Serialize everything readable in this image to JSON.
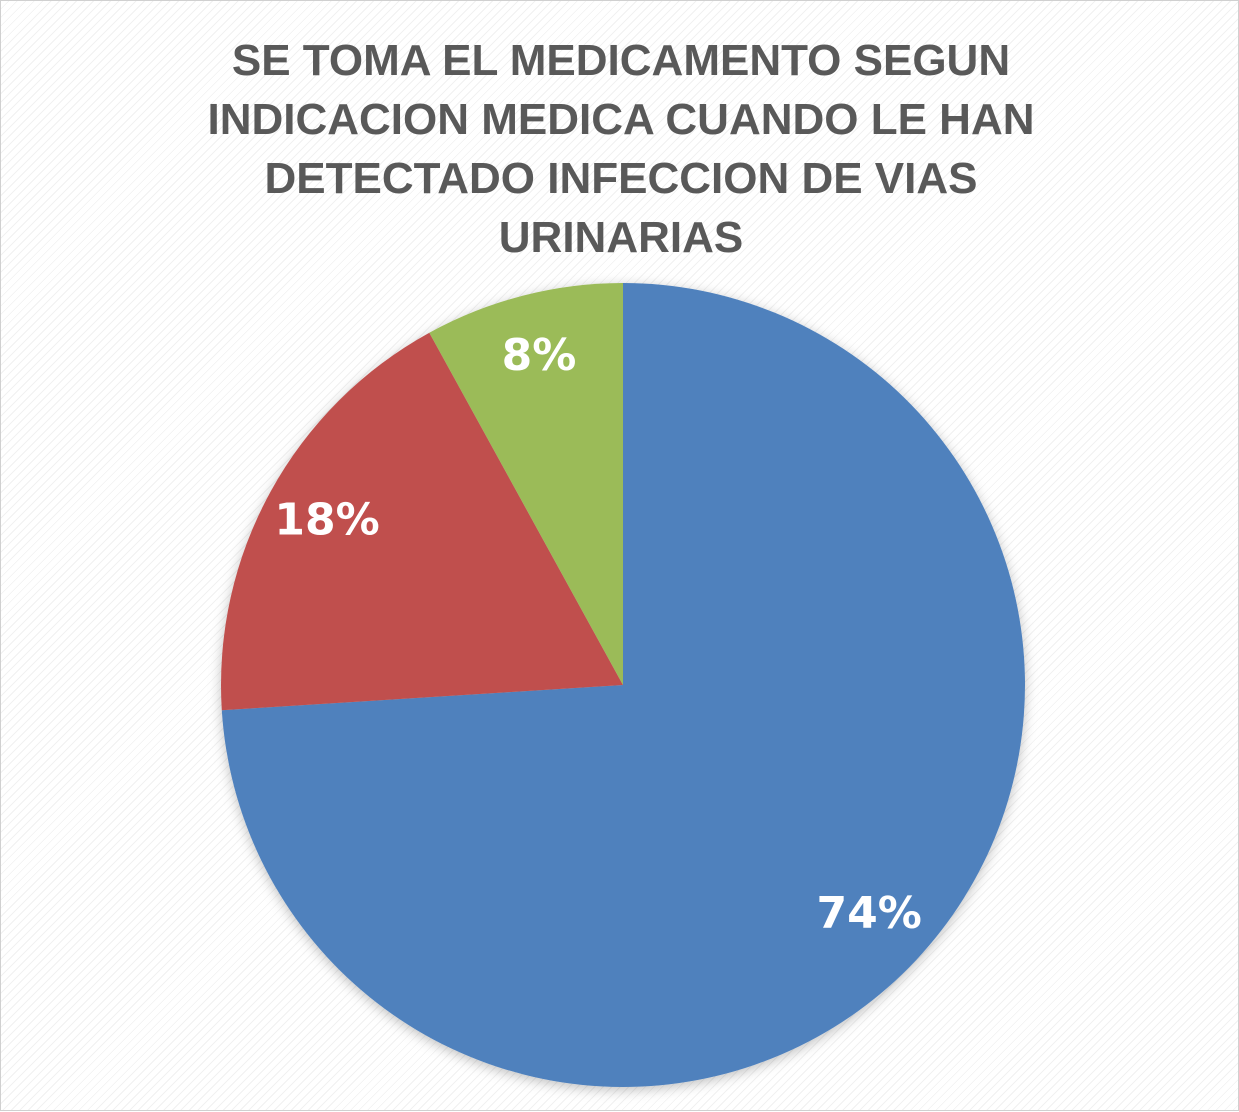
{
  "chart_data": {
    "type": "pie",
    "title": "SE TOMA EL MEDICAMENTO SEGUN INDICACION MEDICA CUANDO LE HAN DETECTADO INFECCION DE VIAS URINARIAS",
    "values": [
      74,
      18,
      8
    ],
    "value_labels": [
      "74%",
      "18%",
      "8%"
    ],
    "colors": [
      "#4f81bd",
      "#c0504d",
      "#9bbb59"
    ]
  }
}
